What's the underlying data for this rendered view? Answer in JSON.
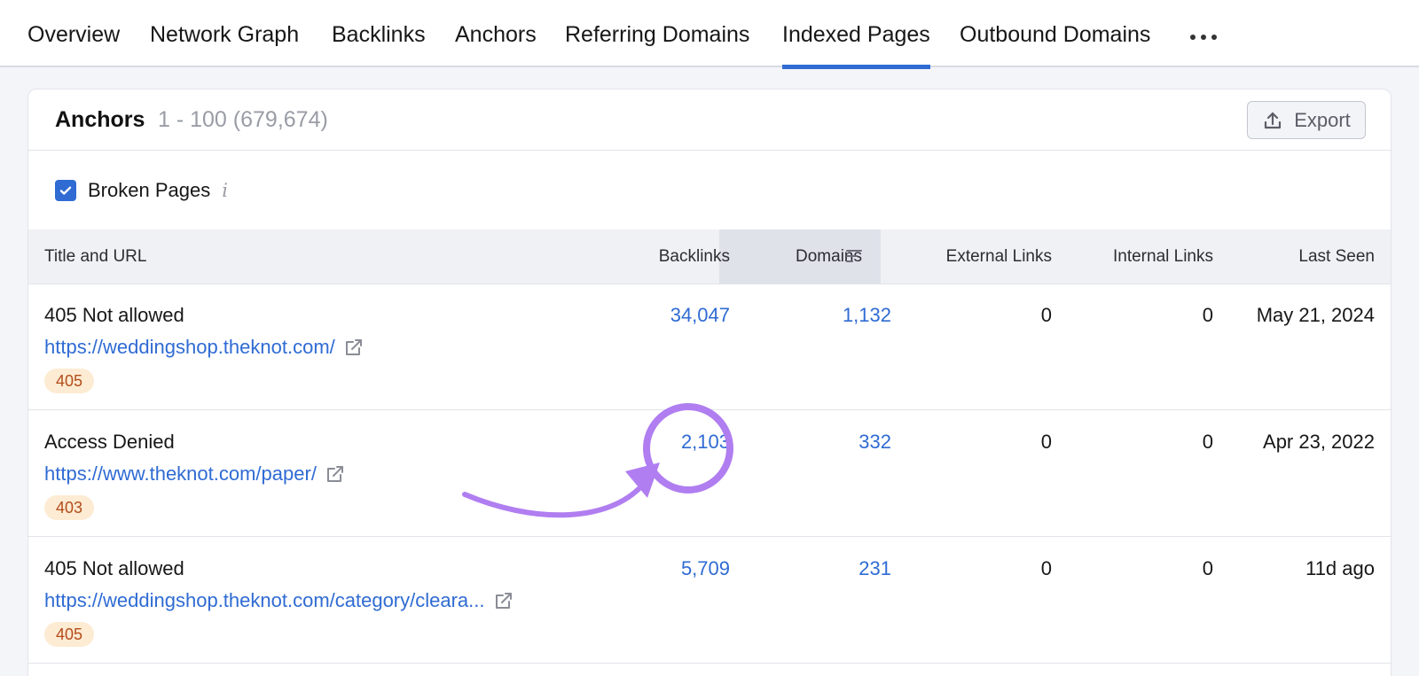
{
  "tabs": [
    {
      "label": "Overview"
    },
    {
      "label": "Network Graph"
    },
    {
      "label": "Backlinks"
    },
    {
      "label": "Anchors"
    },
    {
      "label": "Referring Domains"
    },
    {
      "label": "Indexed Pages"
    },
    {
      "label": "Outbound Domains"
    }
  ],
  "active_tab": "Indexed Pages",
  "card": {
    "title": "Anchors",
    "count": "1 - 100 (679,674)",
    "export_label": "Export"
  },
  "filter": {
    "label": "Broken Pages",
    "checked": true,
    "info": "i"
  },
  "columns": {
    "title_url": "Title and URL",
    "backlinks": "Backlinks",
    "domains": "Domains",
    "external": "External Links",
    "internal": "Internal Links",
    "last_seen": "Last Seen"
  },
  "rows": [
    {
      "title": "405 Not allowed",
      "url": "https://weddingshop.theknot.com/",
      "status": "405",
      "backlinks": "34,047",
      "domains": "1,132",
      "external": "0",
      "internal": "0",
      "last_seen": "May 21, 2024"
    },
    {
      "title": "Access Denied",
      "url": "https://www.theknot.com/paper/",
      "status": "403",
      "backlinks": "2,103",
      "domains": "332",
      "external": "0",
      "internal": "0",
      "last_seen": "Apr 23, 2022"
    },
    {
      "title": "405 Not allowed",
      "url": "https://weddingshop.theknot.com/category/cleara...",
      "status": "405",
      "backlinks": "5,709",
      "domains": "231",
      "external": "0",
      "internal": "0",
      "last_seen": "11d ago"
    }
  ],
  "colors": {
    "accent": "#2f6bd3",
    "annotation": "#b07ef0",
    "badge_bg": "#fdebd3",
    "badge_text": "#b34d1a"
  }
}
